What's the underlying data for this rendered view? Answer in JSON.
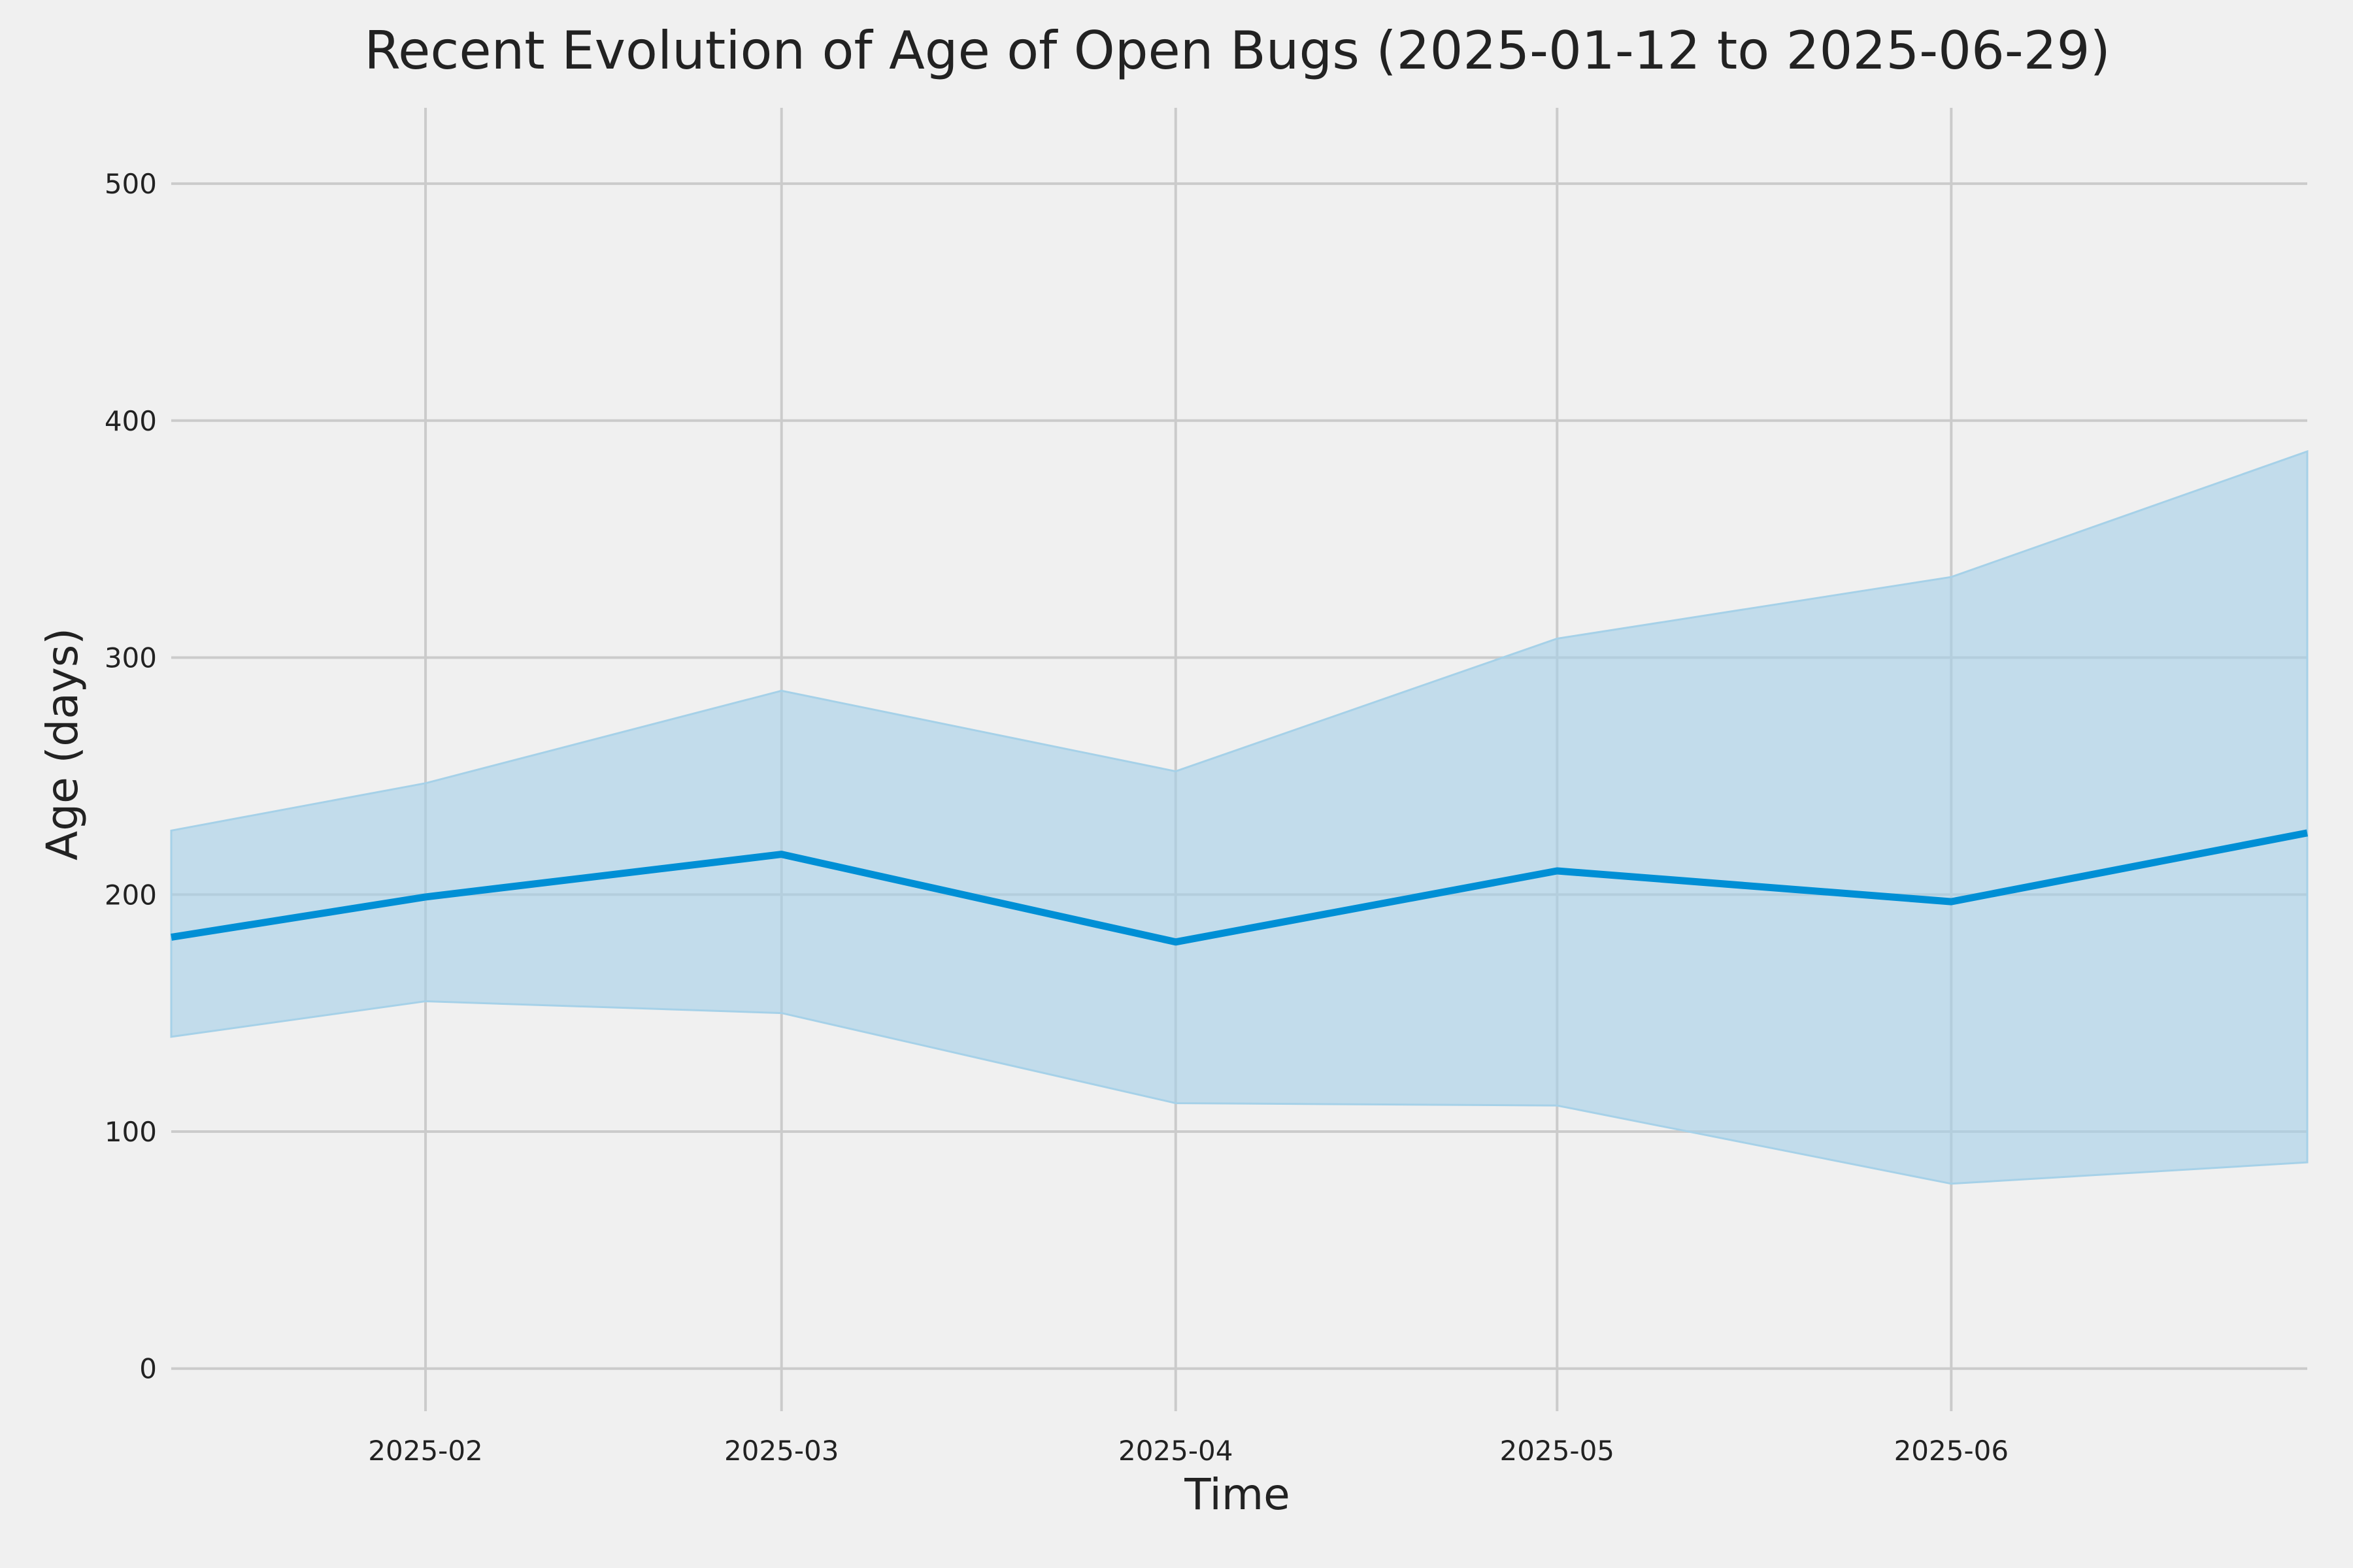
{
  "chart_data": {
    "type": "line",
    "title": "Recent Evolution of Age of Open Bugs (2025-01-12 to 2025-06-29)",
    "xlabel": "Time",
    "ylabel": "Age (days)",
    "x": [
      "2025-01-12",
      "2025-02-01",
      "2025-03-01",
      "2025-04-01",
      "2025-05-01",
      "2025-06-01",
      "2025-06-29"
    ],
    "xlim": [
      "2025-01-12",
      "2025-06-29"
    ],
    "ylim": [
      -18,
      532
    ],
    "xticks": [
      "2025-02-01",
      "2025-03-01",
      "2025-04-01",
      "2025-05-01",
      "2025-06-01"
    ],
    "xtick_labels": [
      "2025-02",
      "2025-03",
      "2025-04",
      "2025-05",
      "2025-06"
    ],
    "yticks": [
      0,
      100,
      200,
      300,
      400,
      500
    ],
    "ytick_labels": [
      "0",
      "100",
      "200",
      "300",
      "400",
      "500"
    ],
    "series": [
      {
        "values": [
          182,
          199,
          217,
          180,
          210,
          197,
          226
        ],
        "upper": [
          227,
          247,
          286,
          252,
          308,
          334,
          387
        ],
        "lower": [
          140,
          155,
          150,
          112,
          111,
          78,
          87
        ]
      }
    ],
    "grid": true,
    "colors": {
      "background": "#f0f0f0",
      "grid": "#cbcbcb",
      "line": "#008fd5",
      "band": "#a6d1e8",
      "text": "#222222"
    }
  }
}
